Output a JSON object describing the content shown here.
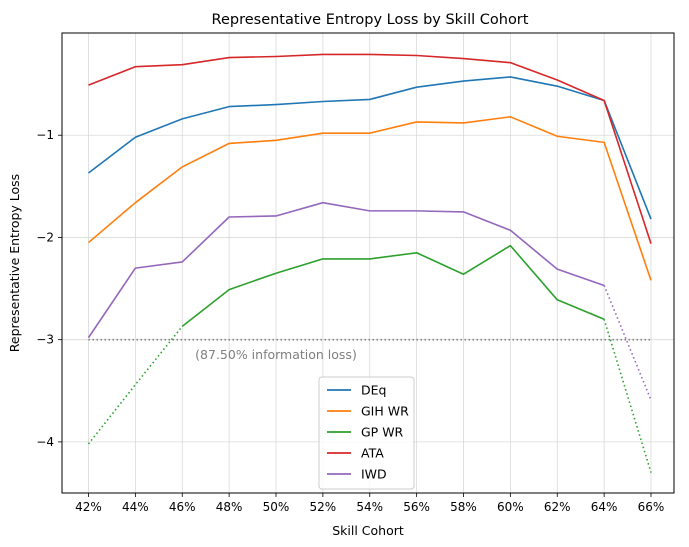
{
  "chart_data": {
    "type": "line",
    "title": "Representative Entropy Loss by Skill Cohort",
    "xlabel": "Skill Cohort",
    "ylabel": "Representative Entropy Loss",
    "categories": [
      "42%",
      "44%",
      "46%",
      "48%",
      "50%",
      "52%",
      "54%",
      "56%",
      "58%",
      "60%",
      "62%",
      "64%",
      "66%"
    ],
    "yticks": [
      -4,
      -3,
      -2,
      -1
    ],
    "ytick_labels": [
      "−4",
      "−3",
      "−2",
      "−1"
    ],
    "ylim": [
      -4.5,
      0.0
    ],
    "grid": true,
    "legend_position": "lower-center",
    "series": [
      {
        "name": "DEq",
        "color": "#1f77b4",
        "values": [
          -1.37,
          -1.02,
          -0.84,
          -0.72,
          -0.7,
          -0.67,
          -0.65,
          -0.53,
          -0.47,
          -0.43,
          -0.52,
          -0.66,
          -1.82
        ]
      },
      {
        "name": "GIH WR",
        "color": "#ff7f0e",
        "values": [
          -2.05,
          -1.66,
          -1.31,
          -1.08,
          -1.05,
          -0.98,
          -0.98,
          -0.87,
          -0.88,
          -0.82,
          -1.01,
          -1.07,
          -2.42
        ]
      },
      {
        "name": "GP WR",
        "color": "#2ca02c",
        "values": [
          null,
          null,
          -2.87,
          -2.51,
          -2.35,
          -2.21,
          -2.21,
          -2.15,
          -2.36,
          -2.08,
          -2.61,
          -2.8,
          null
        ],
        "dotted_values": [
          -4.02,
          -3.44,
          -2.87,
          null,
          null,
          null,
          null,
          null,
          null,
          null,
          null,
          -2.8,
          -4.3
        ]
      },
      {
        "name": "ATA",
        "color": "#d62728",
        "values": [
          -0.51,
          -0.33,
          -0.31,
          -0.24,
          -0.23,
          -0.21,
          -0.21,
          -0.22,
          -0.25,
          -0.29,
          -0.46,
          -0.66,
          -2.06
        ]
      },
      {
        "name": "IWD",
        "color": "#9467bd",
        "values": [
          -2.98,
          -2.3,
          -2.24,
          -1.8,
          -1.79,
          -1.66,
          -1.74,
          -1.74,
          -1.75,
          -1.93,
          -2.31,
          -2.47,
          null
        ],
        "dotted_values": [
          null,
          null,
          null,
          null,
          null,
          null,
          null,
          null,
          null,
          null,
          null,
          -2.47,
          -3.59
        ]
      }
    ],
    "reference_line": {
      "y": -3.0,
      "color": "#808080",
      "style": "dotted"
    },
    "annotation": {
      "text": "(87.50% information loss)",
      "x": "50%",
      "y": -3.15,
      "color": "#808080"
    }
  }
}
